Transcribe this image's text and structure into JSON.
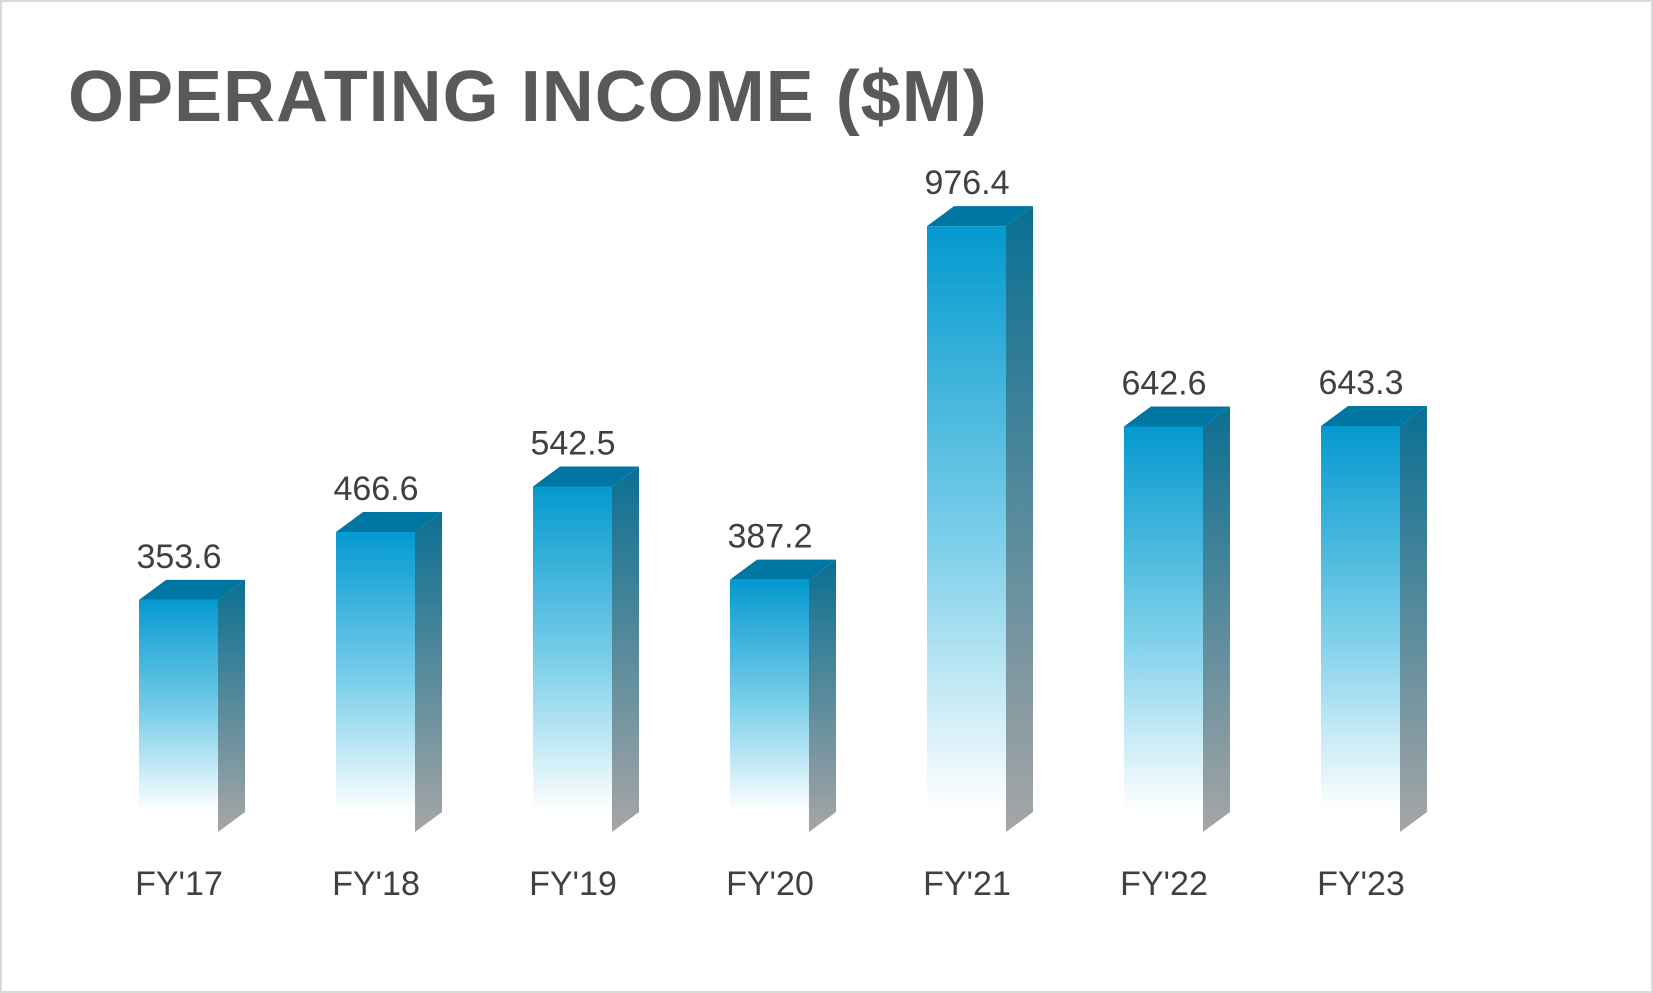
{
  "chart_data": {
    "type": "bar",
    "title": "OPERATING INCOME ($M)",
    "categories": [
      "FY'17",
      "FY'18",
      "FY'19",
      "FY'20",
      "FY'21",
      "FY'22",
      "FY'23"
    ],
    "values": [
      353.6,
      466.6,
      542.5,
      387.2,
      976.4,
      642.6,
      643.3
    ],
    "value_labels": [
      "353.6",
      "466.6",
      "542.5",
      "387.2",
      "976.4",
      "642.6",
      "643.3"
    ],
    "ylim": [
      0,
      1000
    ],
    "grid": false,
    "legend": "none",
    "style": "3d-column with vertical gradient",
    "colors": {
      "front_top": "#0399cf",
      "front_bottom": "#ffffff",
      "top_face": "#0077a3",
      "side_top": "#0a6f92",
      "side_bottom": "#a6a6a6",
      "title": "#595959",
      "text": "#404040"
    }
  }
}
